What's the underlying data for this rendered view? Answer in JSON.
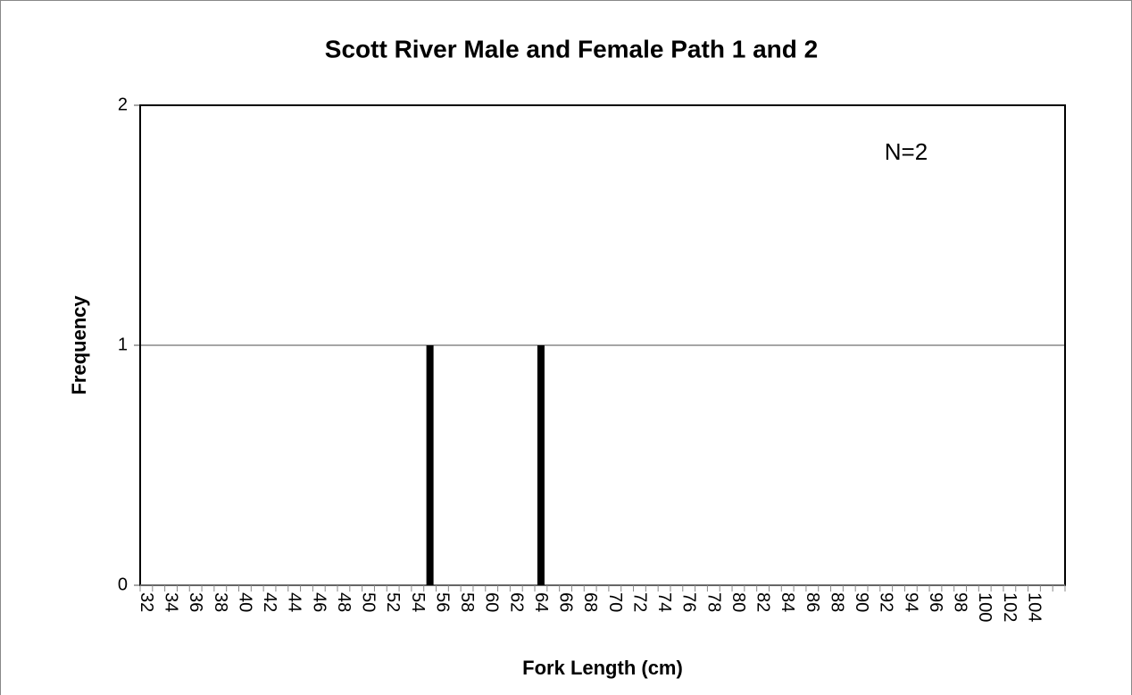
{
  "chart_data": {
    "type": "bar",
    "title": "Scott River Male and Female Path 1 and 2",
    "x_label": "Fork Length (cm)",
    "y_label": "Frequency",
    "annotation": "N=2",
    "categories": [
      "32",
      null,
      "34",
      null,
      "36",
      null,
      "38",
      null,
      "40",
      null,
      "42",
      null,
      "44",
      null,
      "46",
      null,
      "48",
      null,
      "50",
      null,
      "52",
      null,
      "54",
      null,
      "56",
      null,
      "58",
      null,
      "60",
      null,
      "62",
      null,
      "64",
      null,
      "66",
      null,
      "68",
      null,
      "70",
      null,
      "72",
      null,
      "74",
      null,
      "76",
      null,
      "78",
      null,
      "80",
      null,
      "82",
      null,
      "84",
      null,
      "86",
      null,
      "88",
      null,
      "90",
      null,
      "92",
      null,
      "94",
      null,
      "96",
      null,
      "98",
      null,
      "100",
      null,
      "102",
      null,
      "104",
      null,
      null
    ],
    "values": [
      0,
      0,
      0,
      0,
      0,
      0,
      0,
      0,
      0,
      0,
      0,
      0,
      0,
      0,
      0,
      0,
      0,
      0,
      0,
      0,
      0,
      0,
      0,
      1,
      0,
      0,
      0,
      0,
      0,
      0,
      0,
      0,
      1,
      0,
      0,
      0,
      0,
      0,
      0,
      0,
      0,
      0,
      0,
      0,
      0,
      0,
      0,
      0,
      0,
      0,
      0,
      0,
      0,
      0,
      0,
      0,
      0,
      0,
      0,
      0,
      0,
      0,
      0,
      0,
      0,
      0,
      0,
      0,
      0,
      0,
      0,
      0,
      0,
      0,
      0
    ],
    "color": "#000000",
    "ylim": [
      0,
      2
    ],
    "yticks": [
      0,
      1,
      2
    ],
    "grid": true
  }
}
